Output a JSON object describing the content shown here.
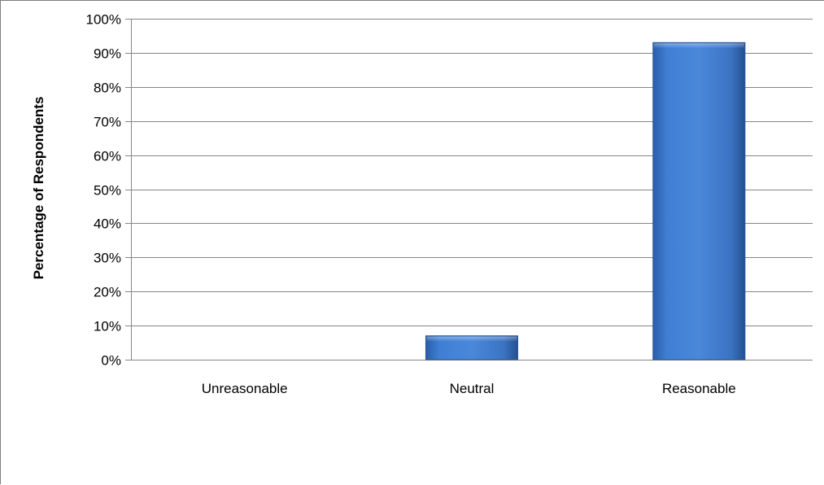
{
  "chart_data": {
    "type": "bar",
    "title": "",
    "xlabel": "",
    "ylabel": "Percentage of Respondents",
    "categories": [
      "Unreasonable",
      "Neutral",
      "Reasonable"
    ],
    "values": [
      0,
      7,
      93
    ],
    "value_unit": "%",
    "ylim": [
      0,
      100
    ],
    "yticks": [
      "0%",
      "10%",
      "20%",
      "30%",
      "40%",
      "50%",
      "60%",
      "70%",
      "80%",
      "90%",
      "100%"
    ],
    "grid": true,
    "legend": "none",
    "bar_color": "#3a73c4"
  }
}
